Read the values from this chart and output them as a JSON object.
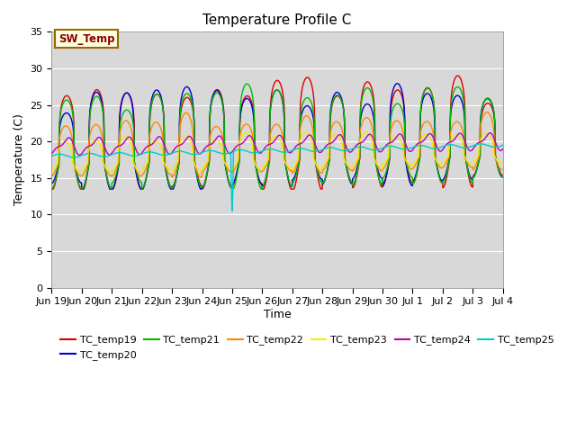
{
  "title": "Temperature Profile C",
  "xlabel": "Time",
  "ylabel": "Temperature (C)",
  "ylim": [
    0,
    35
  ],
  "yticks": [
    0,
    5,
    10,
    15,
    20,
    25,
    30,
    35
  ],
  "plot_bg_color": "#d8d8d8",
  "series_colors": {
    "TC_temp19": "#dd0000",
    "TC_temp20": "#0000cc",
    "TC_temp21": "#00bb00",
    "TC_temp22": "#ff8800",
    "TC_temp23": "#eeee00",
    "TC_temp24": "#bb00bb",
    "TC_temp25": "#00cccc"
  },
  "legend_label": "SW_Temp",
  "x_tick_labels": [
    "Jun 19",
    "Jun 20",
    "Jun 21",
    "Jun 22",
    "Jun 23",
    "Jun 24",
    "Jun 25",
    "Jun 26",
    "Jun 27",
    "Jun 28",
    "Jun 29",
    "Jun 30",
    "Jul 1",
    "Jul 2",
    "Jul 3",
    "Jul 4"
  ]
}
